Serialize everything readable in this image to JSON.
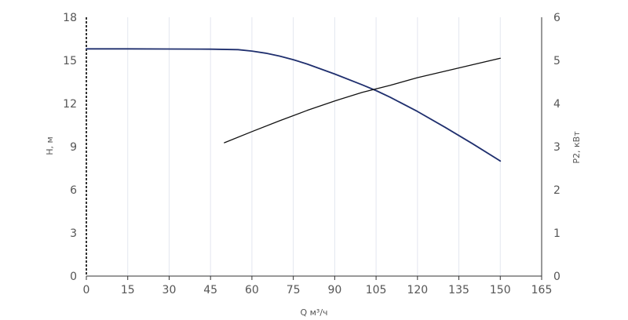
{
  "chart_data": {
    "type": "line",
    "title": "",
    "xlabel": "Q м³/ч",
    "ylabel": "H, м",
    "y2label": "P2, кВт",
    "xlim": [
      0,
      165
    ],
    "ylim": [
      0,
      18
    ],
    "y2lim": [
      0,
      6
    ],
    "xticks": [
      0,
      15,
      30,
      45,
      60,
      75,
      90,
      105,
      120,
      135,
      150,
      165
    ],
    "yticks": [
      0,
      3,
      6,
      9,
      12,
      15,
      18
    ],
    "y2ticks": [
      0,
      1,
      2,
      3,
      4,
      5,
      6
    ],
    "grid": "vertical",
    "colors": {
      "head": "#1f2f6e",
      "power": "#111111",
      "grid": "#e3e6ef",
      "axis": "#333333"
    },
    "series": [
      {
        "axis": "left",
        "x": [
          0,
          15,
          30,
          45,
          55,
          60,
          65,
          70,
          75,
          80,
          90,
          100,
          105,
          110,
          120,
          130,
          140,
          150
        ],
        "y": [
          15.8,
          15.8,
          15.79,
          15.78,
          15.75,
          15.65,
          15.5,
          15.3,
          15.05,
          14.75,
          14.05,
          13.3,
          12.9,
          12.45,
          11.45,
          10.35,
          9.2,
          8.0
        ]
      },
      {
        "axis": "right",
        "x": [
          50,
          60,
          70,
          80,
          90,
          100,
          110,
          120,
          130,
          140,
          150
        ],
        "y": [
          3.09,
          3.35,
          3.6,
          3.84,
          4.06,
          4.26,
          4.42,
          4.6,
          4.75,
          4.9,
          5.05
        ]
      }
    ]
  }
}
